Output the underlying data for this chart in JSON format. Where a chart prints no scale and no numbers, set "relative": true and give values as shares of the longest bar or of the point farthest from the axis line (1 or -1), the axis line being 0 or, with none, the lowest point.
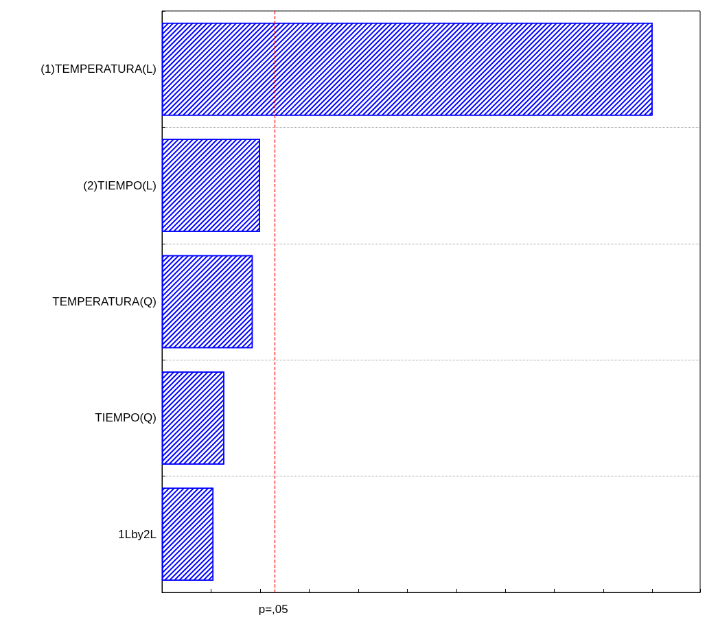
{
  "chart_data": {
    "type": "bar",
    "orientation": "horizontal",
    "relative": true,
    "categories": [
      "(1)TEMPERATURA(L)",
      "(2)TIEMPO(L)",
      "TEMPERATURA(Q)",
      "TIEMPO(Q)",
      "1Lby2L"
    ],
    "values": [
      1,
      0.2,
      0.185,
      0.127,
      0.105
    ],
    "color": "#0000ff",
    "ref_lines": [
      {
        "axis": "x",
        "value": 0.227,
        "label": "p=,05",
        "color": "#ff0000",
        "line_style": "dashed"
      }
    ],
    "grid": "y"
  }
}
